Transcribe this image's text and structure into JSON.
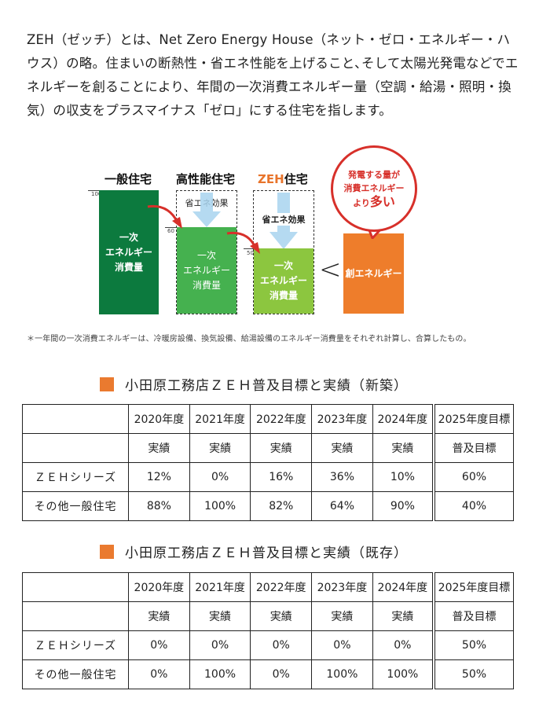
{
  "intro": "ZEH（ゼッチ）とは、Net Zero Energy House（ネット・ゼロ・エネルギー・ハウス）の略。住まいの断熱性・省エネ性能を上げること､そして太陽光発電などでエネルギーを創ることにより、年間の一次消費エネルギー量（空調・給湯・照明・換気）の収支をプラスマイナス「ゼロ」にする住宅を指します。",
  "diagram": {
    "colors": {
      "general": "#0c7a3e",
      "high": "#45b14f",
      "zeh": "#8cc63f",
      "create": "#ee7d2b",
      "bubble": "#d7302a"
    },
    "categories": {
      "general": "一般住宅",
      "high": "高性能住宅",
      "zeh_prefix": "ZEH",
      "zeh_suffix": "住宅"
    },
    "ticks": {
      "t100": "100",
      "t60": "60",
      "t50": "50"
    },
    "consumption_label": "一次\nエネルギー\n消費量",
    "effect_label": "省エネ効果",
    "comparison": "<",
    "create_label": "創エネルギー",
    "bubble": {
      "line1": "発電する量が",
      "line2": "消費エネルギー",
      "line3a": "より",
      "line3b": "多い"
    }
  },
  "note": "＊一年間の一次消費エネルギーは、冷暖房設備、換気設備、給湯設備のエネルギー消費量をそれぞれ計算し、合算したもの。",
  "tables": [
    {
      "title": "小田原工務店ＺＥＨ普及目標と実績（新築）",
      "years": [
        "2020年度",
        "2021年度",
        "2022年度",
        "2023年度",
        "2024年度",
        "2025年度目標"
      ],
      "kinds": [
        "実績",
        "実績",
        "実績",
        "実績",
        "実績",
        "普及目標"
      ],
      "rows": [
        {
          "label": "ＺＥＨシリーズ",
          "values": [
            "12%",
            "0%",
            "16%",
            "36%",
            "10%",
            "60%"
          ]
        },
        {
          "label": "その他一般住宅",
          "values": [
            "88%",
            "100%",
            "82%",
            "64%",
            "90%",
            "40%"
          ]
        }
      ]
    },
    {
      "title": "小田原工務店ＺＥＨ普及目標と実績（既存）",
      "years": [
        "2020年度",
        "2021年度",
        "2022年度",
        "2023年度",
        "2024年度",
        "2025年度目標"
      ],
      "kinds": [
        "実績",
        "実績",
        "実績",
        "実績",
        "実績",
        "普及目標"
      ],
      "rows": [
        {
          "label": "ＺＥＨシリーズ",
          "values": [
            "0%",
            "0%",
            "0%",
            "0%",
            "0%",
            "50%"
          ]
        },
        {
          "label": "その他一般住宅",
          "values": [
            "0%",
            "100%",
            "0%",
            "100%",
            "100%",
            "50%"
          ]
        }
      ]
    }
  ]
}
